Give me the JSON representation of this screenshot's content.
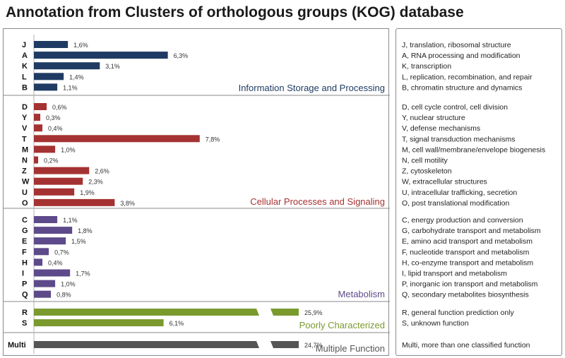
{
  "title": "Annotation from Clusters of orthologous groups (KOG) database",
  "chart_data": {
    "type": "bar",
    "orientation": "horizontal",
    "value_unit": "%",
    "axis_break_after": 7.8,
    "groups": [
      {
        "name": "Information Storage and Processing",
        "color": "#1f3b63",
        "items": [
          {
            "code": "J",
            "value": 1.6,
            "label": "1,6%",
            "description": "J, translation, ribosomal structure"
          },
          {
            "code": "A",
            "value": 6.3,
            "label": "6,3%",
            "description": "A, RNA processing and modification"
          },
          {
            "code": "K",
            "value": 3.1,
            "label": "3,1%",
            "description": "K, transcription"
          },
          {
            "code": "L",
            "value": 1.4,
            "label": "1,4%",
            "description": "L, replication, recombination, and repair"
          },
          {
            "code": "B",
            "value": 1.1,
            "label": "1,1%",
            "description": "B, chromatin structure and dynamics"
          }
        ]
      },
      {
        "name": "Cellular Processes and Signaling",
        "color": "#a53232",
        "items": [
          {
            "code": "D",
            "value": 0.6,
            "label": "0,6%",
            "description": "D, cell cycle control, cell division"
          },
          {
            "code": "Y",
            "value": 0.3,
            "label": "0,3%",
            "description": "Y, nuclear structure"
          },
          {
            "code": "V",
            "value": 0.4,
            "label": "0,4%",
            "description": "V, defense mechanisms"
          },
          {
            "code": "T",
            "value": 7.8,
            "label": "7,8%",
            "description": "T, signal transduction mechanisms"
          },
          {
            "code": "M",
            "value": 1.0,
            "label": "1,0%",
            "description": "M, cell wall/membrane/envelope biogenesis"
          },
          {
            "code": "N",
            "value": 0.2,
            "label": "0,2%",
            "description": "N, cell motility"
          },
          {
            "code": "Z",
            "value": 2.6,
            "label": "2,6%",
            "description": "Z, cytoskeleton"
          },
          {
            "code": "W",
            "value": 2.3,
            "label": "2,3%",
            "description": "W, extracellular structures"
          },
          {
            "code": "U",
            "value": 1.9,
            "label": "1,9%",
            "description": "U, intracellular trafficking, secretion"
          },
          {
            "code": "O",
            "value": 3.8,
            "label": "3,8%",
            "description": "O, post translational modification"
          }
        ]
      },
      {
        "name": "Metabolism",
        "color": "#5d4a8a",
        "items": [
          {
            "code": "C",
            "value": 1.1,
            "label": "1,1%",
            "description": "C, energy production and conversion"
          },
          {
            "code": "G",
            "value": 1.8,
            "label": "1,8%",
            "description": "G, carbohydrate transport and metabolism"
          },
          {
            "code": "E",
            "value": 1.5,
            "label": "1,5%",
            "description": "E, amino acid transport and metabolism"
          },
          {
            "code": "F",
            "value": 0.7,
            "label": "0,7%",
            "description": "F, nucleotide transport and metabolism"
          },
          {
            "code": "H",
            "value": 0.4,
            "label": "0,4%",
            "description": "H, co-enzyme transport and metabolism"
          },
          {
            "code": "I",
            "value": 1.7,
            "label": "1,7%",
            "description": "I, lipid transport and metabolism"
          },
          {
            "code": "P",
            "value": 1.0,
            "label": "1,0%",
            "description": "P, inorganic ion transport and metabolism"
          },
          {
            "code": "Q",
            "value": 0.8,
            "label": "0,8%",
            "description": "Q, secondary metabolites biosynthesis"
          }
        ]
      },
      {
        "name": "Poorly Characterized",
        "color": "#7a9a2e",
        "items": [
          {
            "code": "R",
            "value": 25.9,
            "label": "25,9%",
            "description": "R, general function prediction only"
          },
          {
            "code": "S",
            "value": 6.1,
            "label": "6,1%",
            "description": "S, unknown function"
          }
        ]
      },
      {
        "name": "Multiple Function",
        "color": "#555555",
        "items": [
          {
            "code": "Multi",
            "value": 24.7,
            "label": "24,7%",
            "description": "Multi, more than one classified function"
          }
        ]
      }
    ]
  }
}
